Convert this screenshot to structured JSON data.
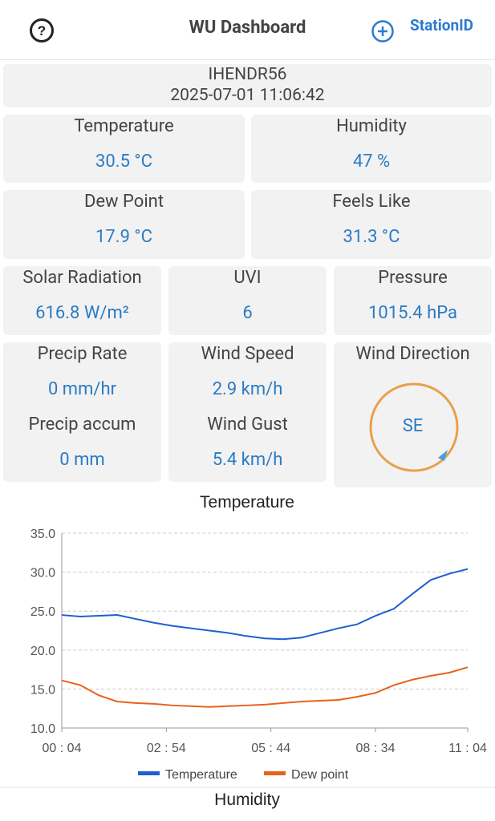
{
  "header": {
    "title": "WU Dashboard",
    "action": "StationID"
  },
  "station": {
    "id": "IHENDR56",
    "timestamp": "2025-07-01 11:06:42"
  },
  "cards": [
    {
      "label": "Temperature",
      "value": "30.5 °C"
    },
    {
      "label": "Humidity",
      "value": "47 %"
    },
    {
      "label": "Dew Point",
      "value": "17.9 °C"
    },
    {
      "label": "Feels Like",
      "value": "31.3 °C"
    },
    {
      "label": "Solar Radiation",
      "value": "616.8 W/m²"
    },
    {
      "label": "UVI",
      "value": "6"
    },
    {
      "label": "Pressure",
      "value": "1015.4 hPa"
    },
    {
      "label": "Precip Rate",
      "value": "0 mm/hr"
    },
    {
      "label": "Precip accum",
      "value": "0 mm"
    },
    {
      "label": "Wind Speed",
      "value": "2.9 km/h"
    },
    {
      "label": "Wind Gust",
      "value": "5.4 km/h"
    },
    {
      "label": "Wind Direction",
      "value": "SE"
    }
  ],
  "chart_data": {
    "type": "line",
    "title": "Temperature",
    "x": [
      "00:04",
      "00:34",
      "01:04",
      "01:34",
      "02:04",
      "02:34",
      "03:04",
      "03:34",
      "04:04",
      "04:34",
      "05:04",
      "05:34",
      "06:04",
      "06:34",
      "07:04",
      "07:34",
      "08:04",
      "08:34",
      "09:04",
      "09:34",
      "10:04",
      "10:34",
      "11:04"
    ],
    "xlim": [
      "00:04",
      "11:04"
    ],
    "xticks": [
      {
        "value": "00:04",
        "label": "00 : 04"
      },
      {
        "value": "02:54",
        "label": "02 : 54"
      },
      {
        "value": "05:44",
        "label": "05 : 44"
      },
      {
        "value": "08:34",
        "label": "08 : 34"
      },
      {
        "value": "11:04",
        "label": "11 : 04"
      }
    ],
    "ylim": [
      10,
      35
    ],
    "yticks": [
      {
        "value": 10,
        "label": "10.0"
      },
      {
        "value": 15,
        "label": "15.0"
      },
      {
        "value": 20,
        "label": "20.0"
      },
      {
        "value": 25,
        "label": "25.0"
      },
      {
        "value": 30,
        "label": "30.0"
      },
      {
        "value": 35,
        "label": "35.0"
      }
    ],
    "grid": true,
    "series": [
      {
        "name": "Temperature",
        "color": "#1f5fd0",
        "values": [
          24.5,
          24.3,
          24.4,
          24.5,
          24.0,
          23.5,
          23.1,
          22.8,
          22.5,
          22.2,
          21.8,
          21.5,
          21.4,
          21.6,
          22.2,
          22.8,
          23.3,
          24.4,
          25.3,
          27.2,
          29.0,
          29.8,
          30.4
        ]
      },
      {
        "name": "Dew point",
        "color": "#e8621c",
        "values": [
          16.1,
          15.5,
          14.2,
          13.4,
          13.2,
          13.1,
          12.9,
          12.8,
          12.7,
          12.8,
          12.9,
          13.0,
          13.2,
          13.4,
          13.5,
          13.6,
          14.0,
          14.5,
          15.5,
          16.2,
          16.7,
          17.1,
          17.8
        ]
      }
    ]
  },
  "next_section": "Humidity"
}
